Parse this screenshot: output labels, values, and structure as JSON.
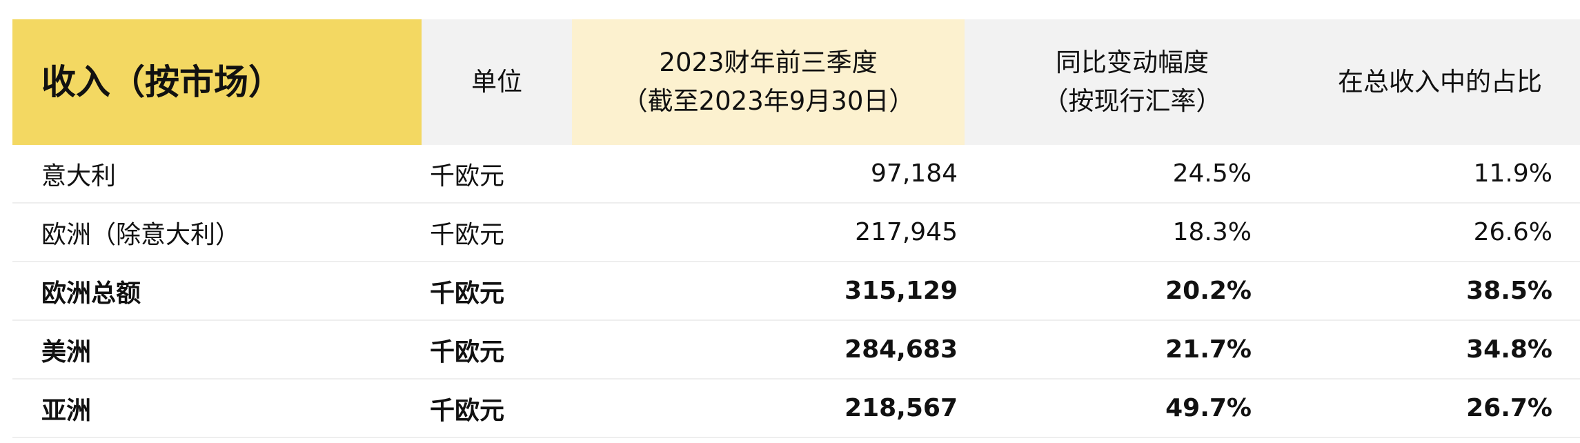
{
  "header": {
    "title": "收入（按市场）",
    "unit": "单位",
    "period_line1": "2023财年前三季度",
    "period_line2": "（截至2023年9月30日）",
    "change_line1": "同比变动幅度",
    "change_line2": "（按现行汇率）",
    "share": "在总收入中的占比"
  },
  "colors": {
    "title_bg": "#f3d862",
    "period_bg": "#fcf1cf",
    "header_bg": "#f2f2f2"
  },
  "rows": [
    {
      "market": "意大利",
      "unit": "千欧元",
      "revenue": "97,184",
      "change": "24.5%",
      "share": "11.9%",
      "bold": false
    },
    {
      "market": "欧洲（除意大利）",
      "unit": "千欧元",
      "revenue": "217,945",
      "change": "18.3%",
      "share": "26.6%",
      "bold": false
    },
    {
      "market": "欧洲总额",
      "unit": "千欧元",
      "revenue": "315,129",
      "change": "20.2%",
      "share": "38.5%",
      "bold": true
    },
    {
      "market": "美洲",
      "unit": "千欧元",
      "revenue": "284,683",
      "change": "21.7%",
      "share": "34.8%",
      "bold": true
    },
    {
      "market": "亚洲",
      "unit": "千欧元",
      "revenue": "218,567",
      "change": "49.7%",
      "share": "26.7%",
      "bold": true
    }
  ]
}
